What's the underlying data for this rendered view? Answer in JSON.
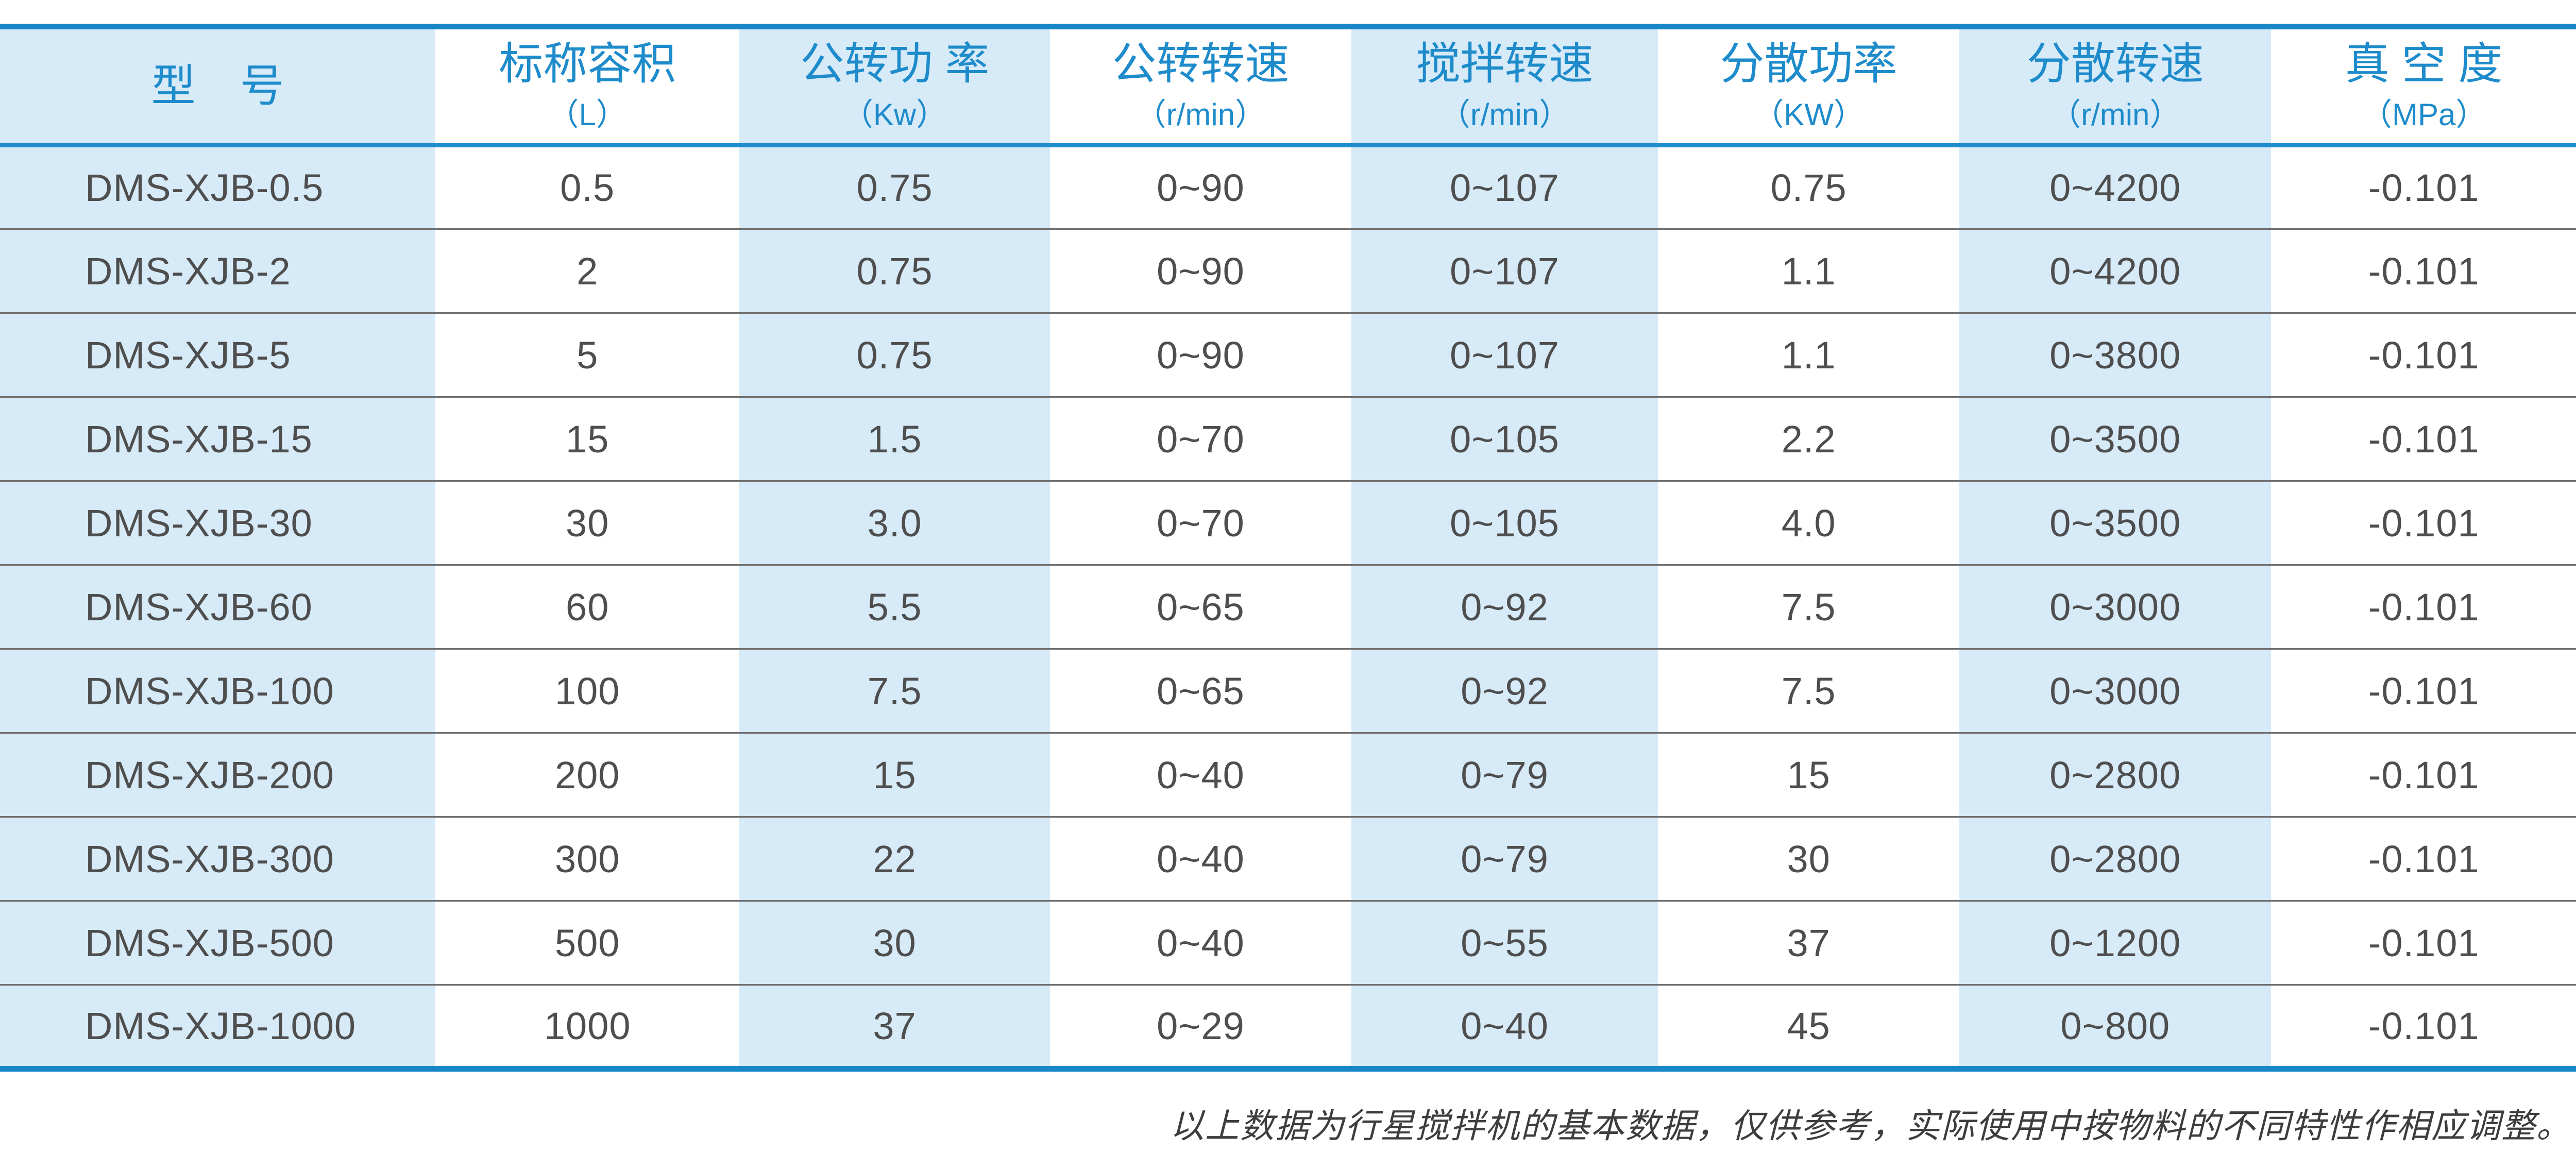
{
  "colors": {
    "accent_blue": "#1787c8",
    "header_text_blue": "#1e8bcb",
    "column_stripe_blue": "#d7eaf8",
    "data_text": "#4e4e4e",
    "row_separator": "#6f6f6f"
  },
  "table": {
    "columns": [
      {
        "title": "型　号",
        "unit": ""
      },
      {
        "title": "标称容积",
        "unit": "（L）"
      },
      {
        "title": "公转功 率",
        "unit": "（Kw）"
      },
      {
        "title": "公转转速",
        "unit": "（r/min）"
      },
      {
        "title": "搅拌转速",
        "unit": "（r/min）"
      },
      {
        "title": "分散功率",
        "unit": "（KW）"
      },
      {
        "title": "分散转速",
        "unit": "（r/min）"
      },
      {
        "title": "真 空 度",
        "unit": "（MPa）"
      }
    ],
    "rows": [
      [
        "DMS-XJB-0.5",
        "0.5",
        "0.75",
        "0~90",
        "0~107",
        "0.75",
        "0~4200",
        "-0.101"
      ],
      [
        "DMS-XJB-2",
        "2",
        "0.75",
        "0~90",
        "0~107",
        "1.1",
        "0~4200",
        "-0.101"
      ],
      [
        "DMS-XJB-5",
        "5",
        "0.75",
        "0~90",
        "0~107",
        "1.1",
        "0~3800",
        "-0.101"
      ],
      [
        "DMS-XJB-15",
        "15",
        "1.5",
        "0~70",
        "0~105",
        "2.2",
        "0~3500",
        "-0.101"
      ],
      [
        "DMS-XJB-30",
        "30",
        "3.0",
        "0~70",
        "0~105",
        "4.0",
        "0~3500",
        "-0.101"
      ],
      [
        "DMS-XJB-60",
        "60",
        "5.5",
        "0~65",
        "0~92",
        "7.5",
        "0~3000",
        "-0.101"
      ],
      [
        "DMS-XJB-100",
        "100",
        "7.5",
        "0~65",
        "0~92",
        "7.5",
        "0~3000",
        "-0.101"
      ],
      [
        "DMS-XJB-200",
        "200",
        "15",
        "0~40",
        "0~79",
        "15",
        "0~2800",
        "-0.101"
      ],
      [
        "DMS-XJB-300",
        "300",
        "22",
        "0~40",
        "0~79",
        "30",
        "0~2800",
        "-0.101"
      ],
      [
        "DMS-XJB-500",
        "500",
        "30",
        "0~40",
        "0~55",
        "37",
        "0~1200",
        "-0.101"
      ],
      [
        "DMS-XJB-1000",
        "1000",
        "37",
        "0~29",
        "0~40",
        "45",
        "0~800",
        "-0.101"
      ]
    ]
  },
  "footer": {
    "note": "以上数据为行星搅拌机的基本数据，仅供参考，实际使用中按物料的不同特性作相应调整。"
  }
}
